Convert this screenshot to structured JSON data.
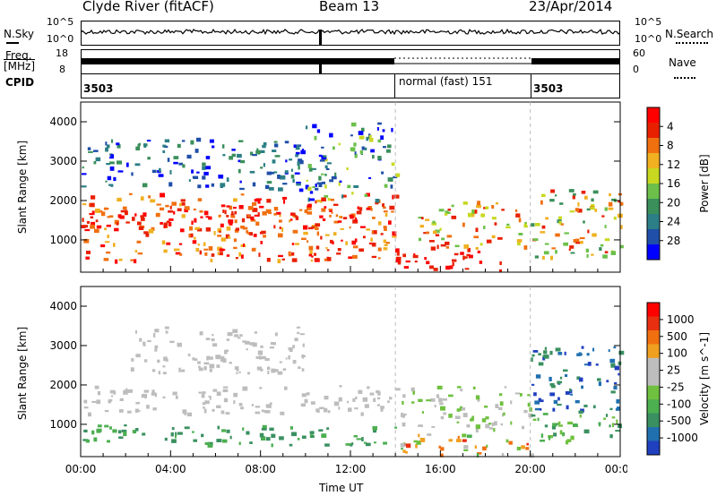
{
  "header": {
    "title": "Clyde River (fitACF)",
    "beam": "Beam 13",
    "date": "23/Apr/2014"
  },
  "strips": {
    "nsky": {
      "label": "N.Sky",
      "right_label": "N.Search",
      "left_ticks": [
        "10^5",
        "10^0"
      ],
      "right_ticks": [
        "10^5",
        "10^0"
      ]
    },
    "freq": {
      "label_line1": "Freq.",
      "label_line2": "[MHz]",
      "right_label": "Nave",
      "left_ticks": [
        "18",
        "8"
      ],
      "right_ticks": [
        "60",
        "0"
      ]
    },
    "cpid": {
      "label": "CPID",
      "segments": [
        "3503",
        "normal (fast) 151",
        "3503"
      ],
      "segment_bounds_hours": [
        0,
        14,
        20,
        24
      ]
    }
  },
  "chart_data": [
    {
      "type": "heatmap",
      "title": "",
      "ylabel": "Slant Range [km]",
      "xlabel": "",
      "x_hours": [
        0,
        24
      ],
      "ylim": [
        180,
        4500
      ],
      "y_ticks": [
        "1000",
        "2000",
        "3000",
        "4000"
      ],
      "colorbar": {
        "label": "Power [dB]",
        "range": [
          0,
          30
        ],
        "ticks": [
          "4",
          "8",
          "12",
          "16",
          "20",
          "24",
          "28"
        ],
        "colors": [
          "#0000ff",
          "#1f4fa8",
          "#2c7f86",
          "#3a8f5a",
          "#6cc04a",
          "#c8d820",
          "#f0b020",
          "#f07010",
          "#e82000",
          "#ff0000"
        ]
      }
    },
    {
      "type": "heatmap",
      "title": "",
      "ylabel": "Slant Range [km]",
      "xlabel": "Time UT",
      "x_hours": [
        0,
        24
      ],
      "ylim": [
        180,
        4500
      ],
      "y_ticks": [
        "1000",
        "2000",
        "3000",
        "4000"
      ],
      "x_ticks": [
        "00:00",
        "04:00",
        "08:00",
        "12:00",
        "16:00",
        "20:00",
        "00:00"
      ],
      "colorbar": {
        "label": "Velocity [m s^-1]",
        "ticks": [
          "1000",
          "500",
          "100",
          "25",
          "-25",
          "-100",
          "-500",
          "-1000"
        ],
        "colors": [
          "#2040c0",
          "#2070b0",
          "#3a9060",
          "#4caf50",
          "#70c040",
          "#bdbdbd",
          "#bdbdbd",
          "#f0a020",
          "#f07010",
          "#e83010",
          "#ff0000"
        ]
      }
    }
  ]
}
